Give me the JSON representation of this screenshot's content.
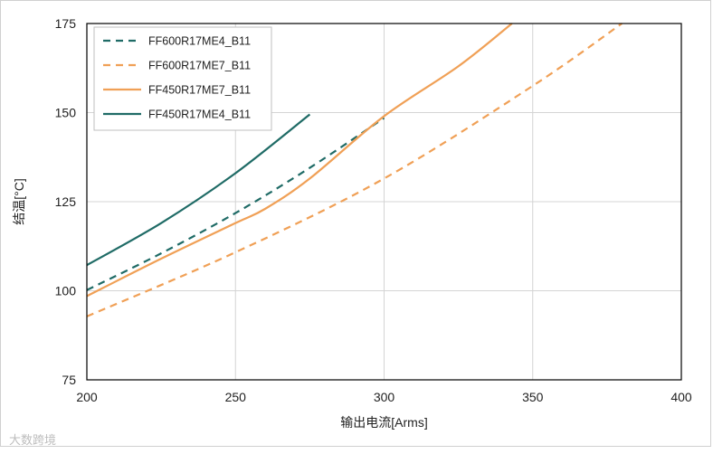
{
  "chart_data": {
    "type": "line",
    "xlabel": "输出电流[Arms]",
    "ylabel": "结温[°C]",
    "xlim": [
      200,
      400
    ],
    "ylim": [
      75,
      175
    ],
    "xticks": [
      200,
      250,
      300,
      350,
      400
    ],
    "yticks": [
      75,
      100,
      125,
      150,
      175
    ],
    "grid": true,
    "legend_position": "top-left",
    "series": [
      {
        "name": "FF600R17ME4_B11",
        "color": "#1f6b66",
        "dash": "dashed",
        "x": [
          200,
          225,
          250,
          275,
          300
        ],
        "y": [
          100.2,
          110.5,
          121.8,
          134.5,
          148.5
        ]
      },
      {
        "name": "FF600R17ME7_B11",
        "color": "#f0a056",
        "dash": "dashed",
        "x": [
          200,
          250,
          300,
          350,
          380
        ],
        "y": [
          92.8,
          110.8,
          131.5,
          157.5,
          175
        ]
      },
      {
        "name": "FF450R17ME7_B11",
        "color": "#f0a056",
        "dash": "solid",
        "x": [
          200,
          225,
          250,
          260,
          275,
          300,
          325,
          343
        ],
        "y": [
          98.5,
          109.0,
          119.0,
          123.0,
          131.5,
          149.0,
          163.0,
          175.0
        ]
      },
      {
        "name": "FF450R17ME4_B11",
        "color": "#1f6b66",
        "dash": "solid",
        "x": [
          200,
          225,
          250,
          275
        ],
        "y": [
          107.2,
          119.0,
          133.0,
          149.5
        ]
      }
    ]
  },
  "watermark": "大数跨境"
}
